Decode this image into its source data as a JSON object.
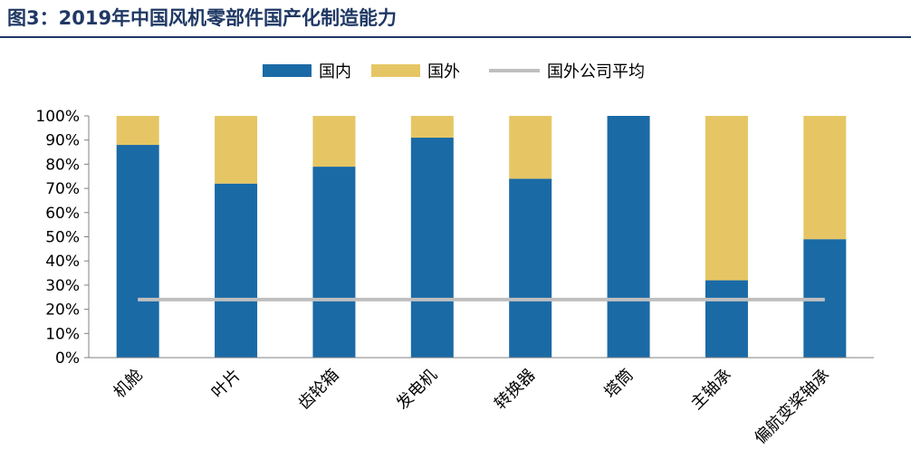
{
  "figure": {
    "title": "图3：2019年中国风机零部件国产化制造能力"
  },
  "colors": {
    "domestic": "#1a6aa6",
    "foreign": "#e6c664",
    "average_line": "#bfbfbf",
    "title": "#1f3864"
  },
  "chart_data": {
    "type": "bar",
    "stacked": true,
    "title": "",
    "xlabel": "",
    "ylabel": "",
    "categories": [
      "机舱",
      "叶片",
      "齿轮箱",
      "发电机",
      "转换器",
      "塔筒",
      "主轴承",
      "偏航变桨轴承"
    ],
    "series": [
      {
        "name": "国内",
        "values": [
          88,
          72,
          79,
          91,
          74,
          100,
          32,
          49
        ]
      },
      {
        "name": "国外",
        "values": [
          12,
          28,
          21,
          9,
          26,
          0,
          68,
          51
        ]
      }
    ],
    "reference_line": {
      "name": "国外公司平均",
      "value": 24
    },
    "ylim": [
      0,
      100
    ],
    "yticks": [
      "0%",
      "10%",
      "20%",
      "30%",
      "40%",
      "50%",
      "60%",
      "70%",
      "80%",
      "90%",
      "100%"
    ],
    "legend_position": "top-center",
    "grid": false
  }
}
